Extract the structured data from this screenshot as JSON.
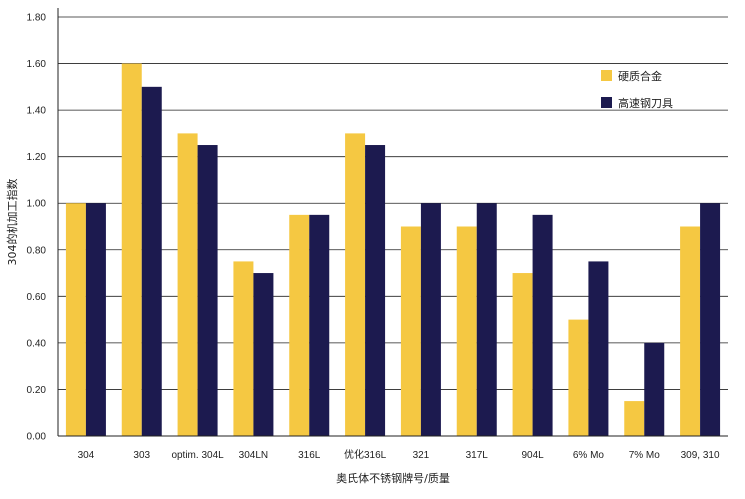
{
  "chart_data": {
    "type": "bar",
    "title": "",
    "xlabel": "奥氏体不锈钢牌号/质量",
    "ylabel": "304的机加工指数",
    "ylim": [
      0,
      1.8
    ],
    "ytick_step": 0.2,
    "yticks": [
      "0.00",
      "0.20",
      "0.40",
      "0.60",
      "0.80",
      "1.00",
      "1.20",
      "1.40",
      "1.60",
      "1.80"
    ],
    "grid": true,
    "legend_position": "top-right",
    "categories": [
      "304",
      "303",
      "optim. 304L",
      "304LN",
      "316L",
      "优化316L",
      "321",
      "317L",
      "904L",
      "6% Mo",
      "7% Mo",
      "309, 310"
    ],
    "series": [
      {
        "name": "硬质合金",
        "color": "#f5c842",
        "values": [
          1.0,
          1.6,
          1.3,
          0.75,
          0.95,
          1.3,
          0.9,
          0.9,
          0.7,
          0.5,
          0.15,
          0.9
        ]
      },
      {
        "name": "高速钢刀具",
        "color": "#1c1a4f",
        "values": [
          1.0,
          1.5,
          1.25,
          0.7,
          0.95,
          1.25,
          1.0,
          1.0,
          0.95,
          0.75,
          0.4,
          1.0
        ]
      }
    ]
  }
}
